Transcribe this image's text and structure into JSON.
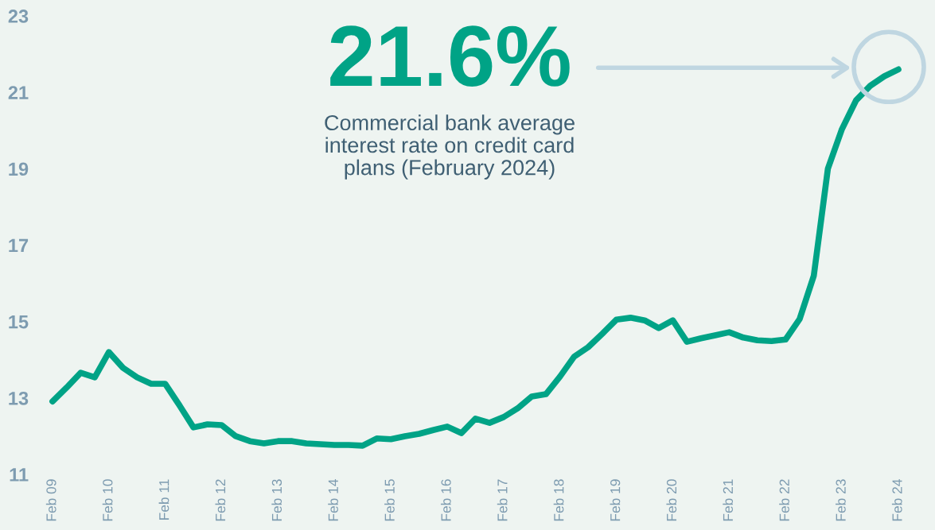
{
  "chart_data": {
    "type": "line",
    "categories": [
      "Feb 09",
      null,
      null,
      null,
      "Feb 10",
      null,
      null,
      null,
      "Feb 11",
      null,
      null,
      null,
      "Feb 12",
      null,
      null,
      null,
      "Feb 13",
      null,
      null,
      null,
      "Feb 14",
      null,
      null,
      null,
      "Feb 15",
      null,
      null,
      null,
      "Feb 16",
      null,
      null,
      null,
      "Feb 17",
      null,
      null,
      null,
      "Feb 18",
      null,
      null,
      null,
      "Feb 19",
      null,
      null,
      null,
      "Feb 20",
      null,
      null,
      null,
      "Feb 21",
      null,
      null,
      null,
      "Feb 22",
      null,
      null,
      null,
      "Feb 23",
      null,
      null,
      null,
      "Feb 24"
    ],
    "series": [
      {
        "color": "#00a386",
        "values": [
          12.91,
          13.27,
          13.66,
          13.54,
          14.2,
          13.79,
          13.54,
          13.37,
          13.37,
          12.81,
          12.23,
          12.31,
          12.29,
          12.0,
          11.87,
          11.81,
          11.87,
          11.87,
          11.81,
          11.79,
          11.77,
          11.77,
          11.75,
          11.94,
          11.92,
          12.0,
          12.06,
          12.16,
          12.25,
          12.08,
          12.46,
          12.35,
          12.5,
          12.73,
          13.04,
          13.1,
          13.56,
          14.08,
          14.33,
          14.68,
          15.05,
          15.1,
          15.03,
          14.83,
          15.03,
          14.47,
          14.56,
          14.64,
          14.72,
          14.58,
          14.51,
          14.49,
          14.53,
          15.07,
          16.2,
          19.0,
          20.04,
          20.79,
          21.17,
          21.42,
          21.6
        ]
      }
    ],
    "ylim": [
      11,
      23
    ],
    "yticks": [
      11,
      13,
      15,
      17,
      19,
      21,
      23
    ],
    "annotations": [
      "21.6%",
      "Commercial bank average\ninterest rate on credit card\nplans (February 2024)"
    ],
    "grid": false,
    "marker": "none",
    "line_style": "solid"
  }
}
